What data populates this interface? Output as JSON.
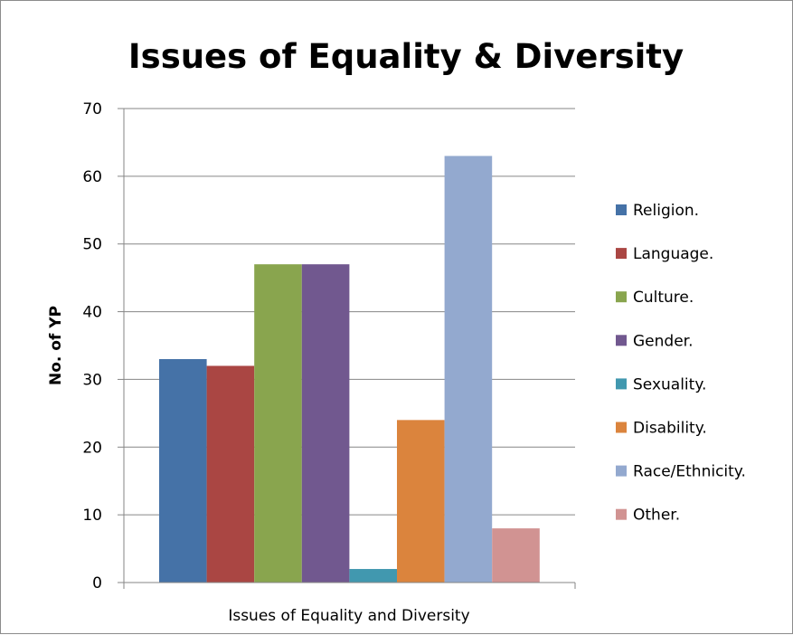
{
  "chart_data": {
    "type": "bar",
    "title": "Issues of Equality & Diversity",
    "ylabel": "No. of YP",
    "categories": [
      "Issues of Equality and Diversity"
    ],
    "ylim": [
      0,
      70
    ],
    "yticks": [
      0,
      10,
      20,
      30,
      40,
      50,
      60,
      70
    ],
    "grid": true,
    "legend_position": "right",
    "series": [
      {
        "name": "Religion.",
        "values": [
          33
        ],
        "color": "#4572a7"
      },
      {
        "name": "Language.",
        "values": [
          32
        ],
        "color": "#aa4643"
      },
      {
        "name": "Culture.",
        "values": [
          47
        ],
        "color": "#89a54e"
      },
      {
        "name": "Gender.",
        "values": [
          47
        ],
        "color": "#71588f"
      },
      {
        "name": "Sexuality.",
        "values": [
          2
        ],
        "color": "#4198af"
      },
      {
        "name": "Disability.",
        "values": [
          24
        ],
        "color": "#db843d"
      },
      {
        "name": "Race/Ethnicity.",
        "values": [
          63
        ],
        "color": "#93a9cf"
      },
      {
        "name": "Other.",
        "values": [
          8
        ],
        "color": "#d19392"
      }
    ]
  }
}
